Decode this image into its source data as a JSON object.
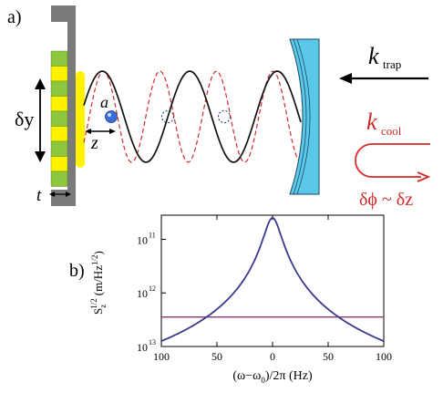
{
  "panel_a": {
    "label": "a)",
    "particle_label": "a",
    "dy_label": "δy",
    "z_label": "z",
    "t_label": "t",
    "k_trap_main": "k",
    "k_trap_sub": "trap",
    "k_cool_main": "k",
    "k_cool_sub": "cool",
    "phase_label": "δϕ ~ δz",
    "colors": {
      "mirror": "#5bc8e8",
      "wave_solid": "#111111",
      "wave_dashed": "#d22a2a",
      "particle": "#3a6fd8",
      "plate": "#7a7a7a",
      "green": "#8dc63f",
      "yellow": "#fff200"
    }
  },
  "panel_b": {
    "label": "b)",
    "ylabel_main": "S",
    "ylabel_sub": "z",
    "ylabel_sup": "1/2",
    "ylabel_units": "(m/Hz",
    "ylabel_units_sup": "1/2",
    "ylabel_units_close": ")",
    "xlabel": "(ω−ω",
    "xlabel_sub": "0",
    "xlabel_rest": ")/2π (Hz)"
  },
  "chart_data": {
    "type": "line",
    "xlim": [
      -100,
      100
    ],
    "ylim_exponent": [
      -13,
      -10.55
    ],
    "y_scale": "log",
    "x_ticks": [
      -100,
      -50,
      0,
      50,
      100
    ],
    "x_tick_labels": [
      "100",
      "50",
      "0",
      "50",
      "100"
    ],
    "y_ticks": [
      -11,
      -12,
      -13
    ],
    "y_tick_base": "10",
    "y_tick_exponents": [
      "11",
      "12",
      "13"
    ],
    "series": [
      {
        "color": "#3a3a8c",
        "shape": "lorentzian",
        "peak_x": 0,
        "peak_exponent": -10.6,
        "edge_exponent": -12.9
      },
      {
        "color": "#8a3a6a",
        "shape": "flat",
        "exponent": -12.45
      }
    ]
  }
}
